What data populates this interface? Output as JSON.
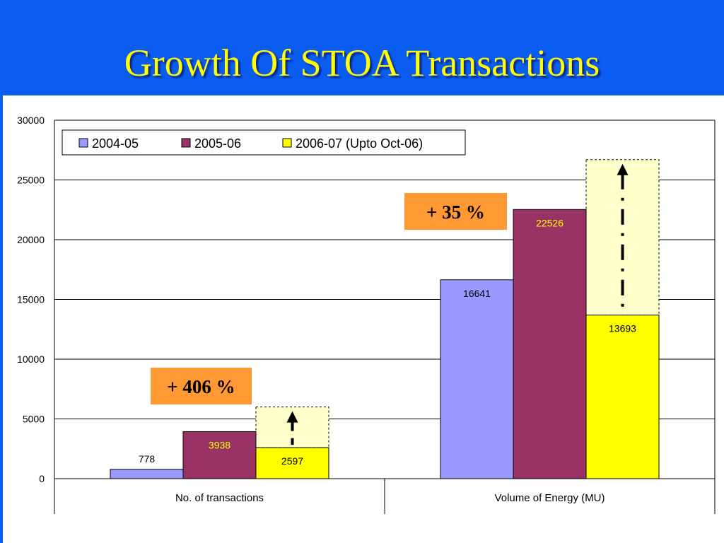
{
  "slide": {
    "title": "Growth Of STOA Transactions"
  },
  "colors": {
    "header_bg": "#0b5cf0",
    "title_text": "#ffff00",
    "series_2004_05": "#9999ff",
    "series_2005_06": "#993366",
    "series_2006_07": "#ffff00",
    "callout_bg": "#ff9933",
    "projection_fill": "#ffffcc"
  },
  "chart_data": {
    "type": "bar",
    "categories": [
      "No. of transactions",
      "Volume of Energy (MU)"
    ],
    "series": [
      {
        "name": "2004-05",
        "values": [
          778,
          16641
        ]
      },
      {
        "name": "2005-06",
        "values": [
          3938,
          22526
        ]
      },
      {
        "name": "2006-07 (Upto Oct-06)",
        "values": [
          2597,
          13693
        ]
      }
    ],
    "projected_2006_07": [
      6000,
      26700
    ],
    "ylim": [
      0,
      30000
    ],
    "yticks": [
      0,
      5000,
      10000,
      15000,
      20000,
      25000,
      30000
    ],
    "grid": true,
    "legend_position": "top-left",
    "annotations": [
      {
        "text": "+ 406 %",
        "category": "No. of transactions"
      },
      {
        "text": "+ 35 %",
        "category": "Volume of Energy (MU)"
      }
    ]
  }
}
